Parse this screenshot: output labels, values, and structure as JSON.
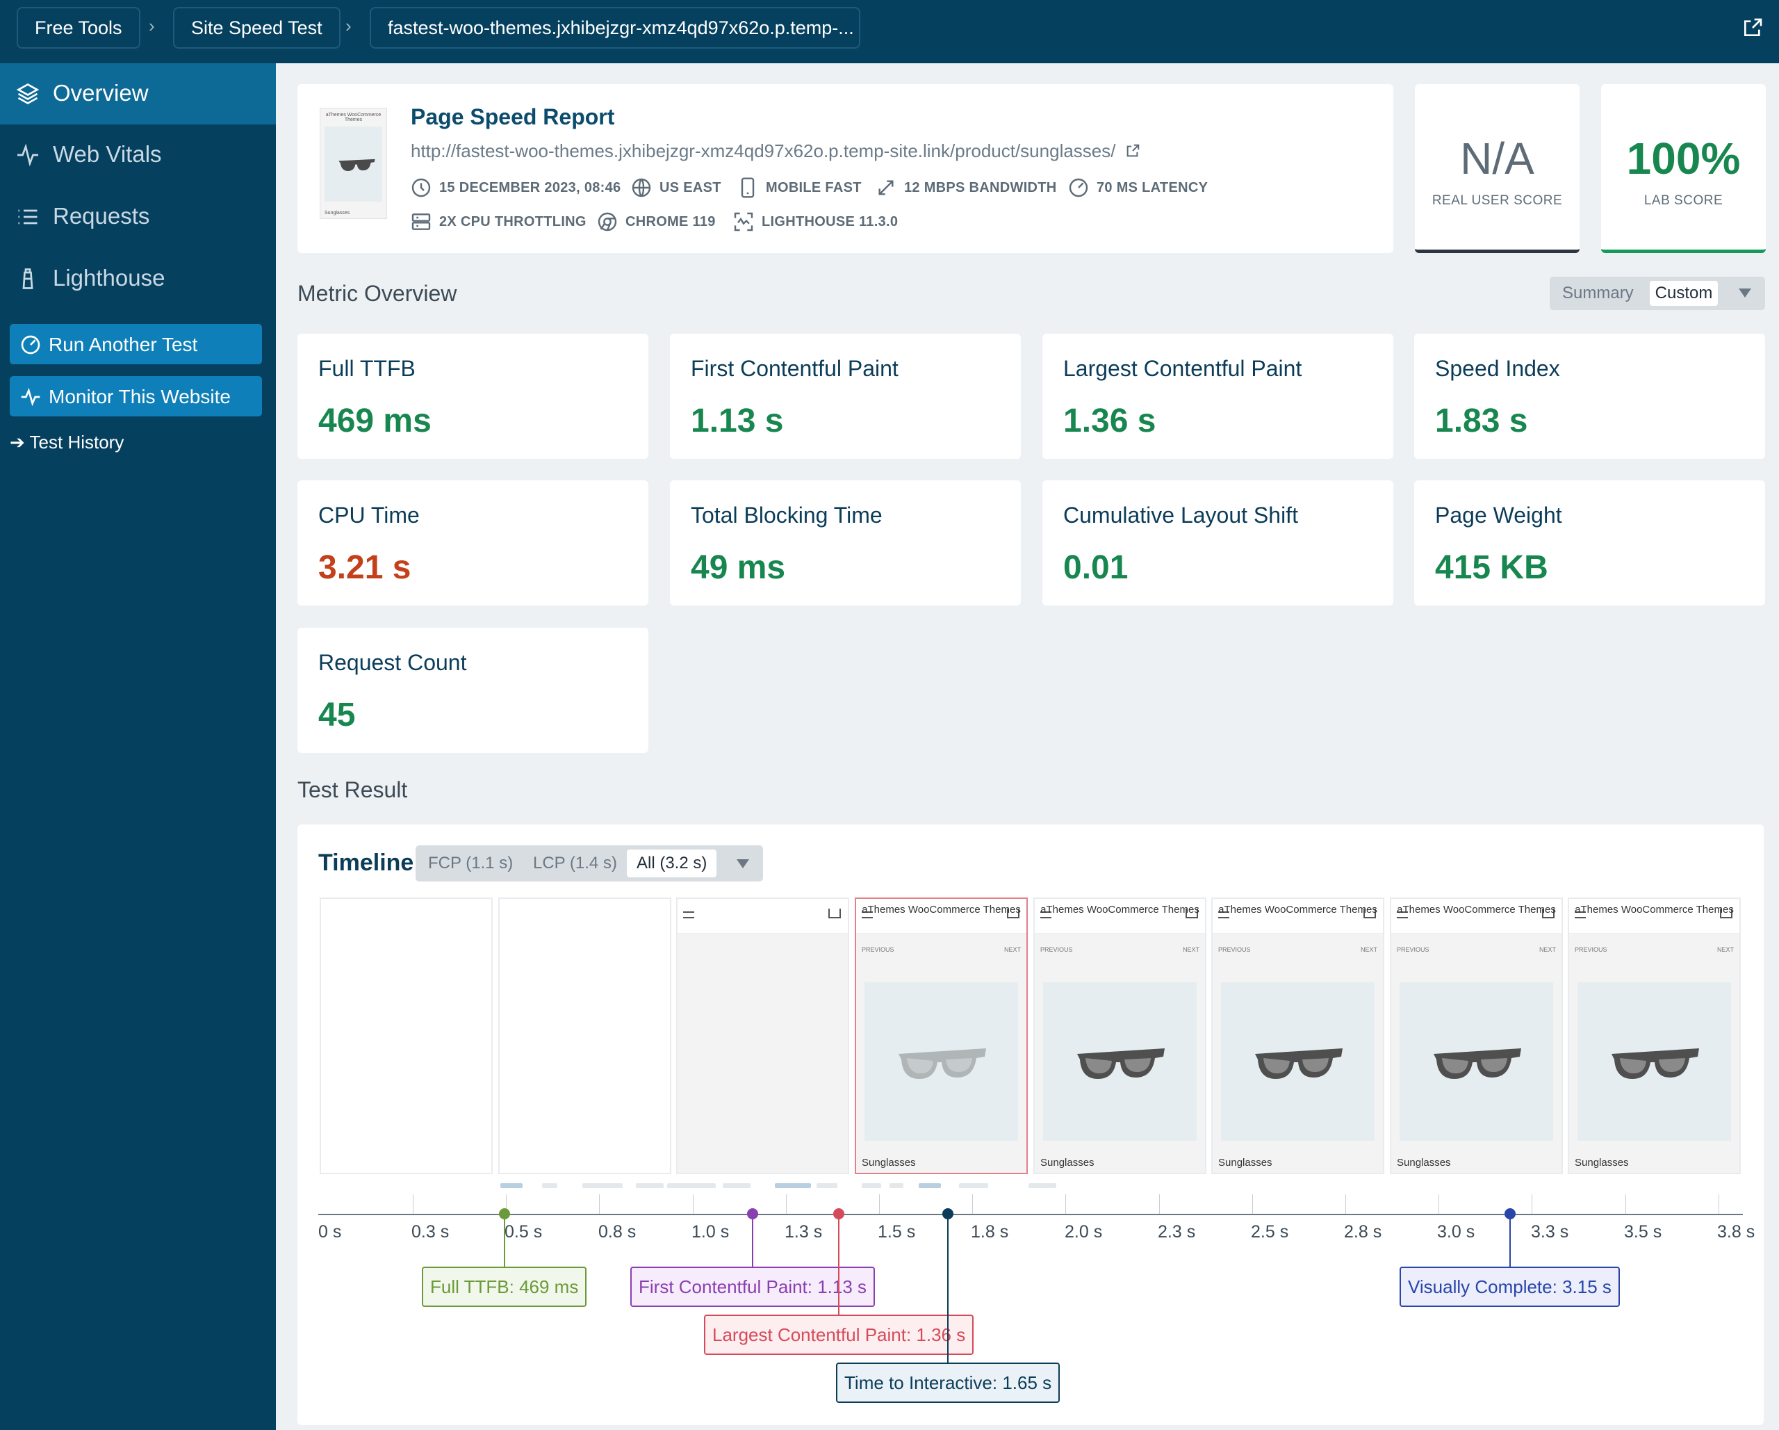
{
  "breadcrumb": {
    "items": [
      "Free Tools",
      "Site Speed Test",
      "fastest-woo-themes.jxhibejzgr-xmz4qd97x62o.p.temp-..."
    ]
  },
  "sidebar": {
    "items": [
      {
        "label": "Overview",
        "icon": "layers-icon",
        "active": true
      },
      {
        "label": "Web Vitals",
        "icon": "pulse-icon",
        "active": false
      },
      {
        "label": "Requests",
        "icon": "list-icon",
        "active": false
      },
      {
        "label": "Lighthouse",
        "icon": "lighthouse-icon",
        "active": false
      }
    ],
    "run_test": "Run Another Test",
    "monitor": "Monitor This Website",
    "history": "➔ Test History"
  },
  "report": {
    "title": "Page Speed Report",
    "url": "http://fastest-woo-themes.jxhibejzgr-xmz4qd97x62o.p.temp-site.link/product/sunglasses/",
    "meta": {
      "date": "15 DECEMBER 2023, 08:46",
      "region": "US EAST",
      "device": "MOBILE FAST",
      "bandwidth": "12 MBPS BANDWIDTH",
      "latency": "70 MS LATENCY",
      "cpu": "2X CPU THROTTLING",
      "browser": "CHROME 119",
      "lighthouse": "LIGHTHOUSE 11.3.0"
    },
    "thumb_text": "aThemes WooCommerce Themes",
    "thumb_caption": "Sunglasses"
  },
  "scores": {
    "real_user": {
      "value": "N/A",
      "label": "REAL USER SCORE"
    },
    "lab": {
      "value": "100%",
      "label": "LAB SCORE"
    }
  },
  "metric_overview": {
    "title": "Metric Overview",
    "toggle": {
      "option1": "Summary",
      "option2": "Custom"
    },
    "metrics": [
      {
        "label": "Full TTFB",
        "value": "469 ms",
        "status": "good"
      },
      {
        "label": "First Contentful Paint",
        "value": "1.13 s",
        "status": "good"
      },
      {
        "label": "Largest Contentful Paint",
        "value": "1.36 s",
        "status": "good"
      },
      {
        "label": "Speed Index",
        "value": "1.83 s",
        "status": "good"
      },
      {
        "label": "CPU Time",
        "value": "3.21 s",
        "status": "bad"
      },
      {
        "label": "Total Blocking Time",
        "value": "49 ms",
        "status": "good"
      },
      {
        "label": "Cumulative Layout Shift",
        "value": "0.01",
        "status": "good"
      },
      {
        "label": "Page Weight",
        "value": "415 KB",
        "status": "good"
      },
      {
        "label": "Request Count",
        "value": "45",
        "status": "good"
      }
    ]
  },
  "test_result": {
    "title": "Test Result",
    "timeline": {
      "title": "Timeline",
      "tabs": [
        "FCP (1.1 s)",
        "LCP (1.4 s)",
        "All (3.2 s)"
      ],
      "selected_tab": "All (3.2 s)",
      "frames": [
        {
          "type": "blank"
        },
        {
          "type": "blank"
        },
        {
          "type": "header-only"
        },
        {
          "type": "product",
          "brand": "aThemes WooCommerce Themes",
          "prev": "PREVIOUS",
          "next": "NEXT",
          "caption": "Sunglasses",
          "faded": true,
          "lcp": true
        },
        {
          "type": "product",
          "brand": "aThemes WooCommerce Themes",
          "prev": "PREVIOUS",
          "next": "NEXT",
          "caption": "Sunglasses"
        },
        {
          "type": "product",
          "brand": "aThemes WooCommerce Themes",
          "prev": "PREVIOUS",
          "next": "NEXT",
          "caption": "Sunglasses"
        },
        {
          "type": "product",
          "brand": "aThemes WooCommerce Themes",
          "prev": "PREVIOUS",
          "next": "NEXT",
          "caption": "Sunglasses"
        },
        {
          "type": "product",
          "brand": "aThemes WooCommerce Themes",
          "prev": "PREVIOUS",
          "next": "NEXT",
          "caption": "Sunglasses"
        }
      ],
      "axis_ticks": [
        "0 s",
        "0.3 s",
        "0.5 s",
        "0.8 s",
        "1.0 s",
        "1.3 s",
        "1.5 s",
        "1.8 s",
        "2.0 s",
        "2.3 s",
        "2.5 s",
        "2.8 s",
        "3.0 s",
        "3.3 s",
        "3.5 s",
        "3.8 s"
      ],
      "axis_max_s": 3.75,
      "markers": [
        {
          "label": "Full TTFB: 469 ms",
          "time": 0.469,
          "color": "#6a9a3a",
          "bg": "#f1f7ea"
        },
        {
          "label": "First Contentful Paint: 1.13 s",
          "time": 1.13,
          "color": "#8a3fb0",
          "bg": "#f6ecfb"
        },
        {
          "label": "Largest Contentful Paint: 1.36 s",
          "time": 1.36,
          "color": "#d64b5b",
          "bg": "#fdeef0"
        },
        {
          "label": "Time to Interactive: 1.65 s",
          "time": 1.65,
          "color": "#0b3c58",
          "bg": "#eaf2f7"
        },
        {
          "label": "Visually Complete: 3.15 s",
          "time": 3.15,
          "color": "#2945a8",
          "bg": "#eceffb"
        }
      ],
      "colors": {
        "axis": "#6c7780",
        "frame_border": "#e9ecef",
        "lcp_frame_border": "#e3808a"
      }
    }
  }
}
